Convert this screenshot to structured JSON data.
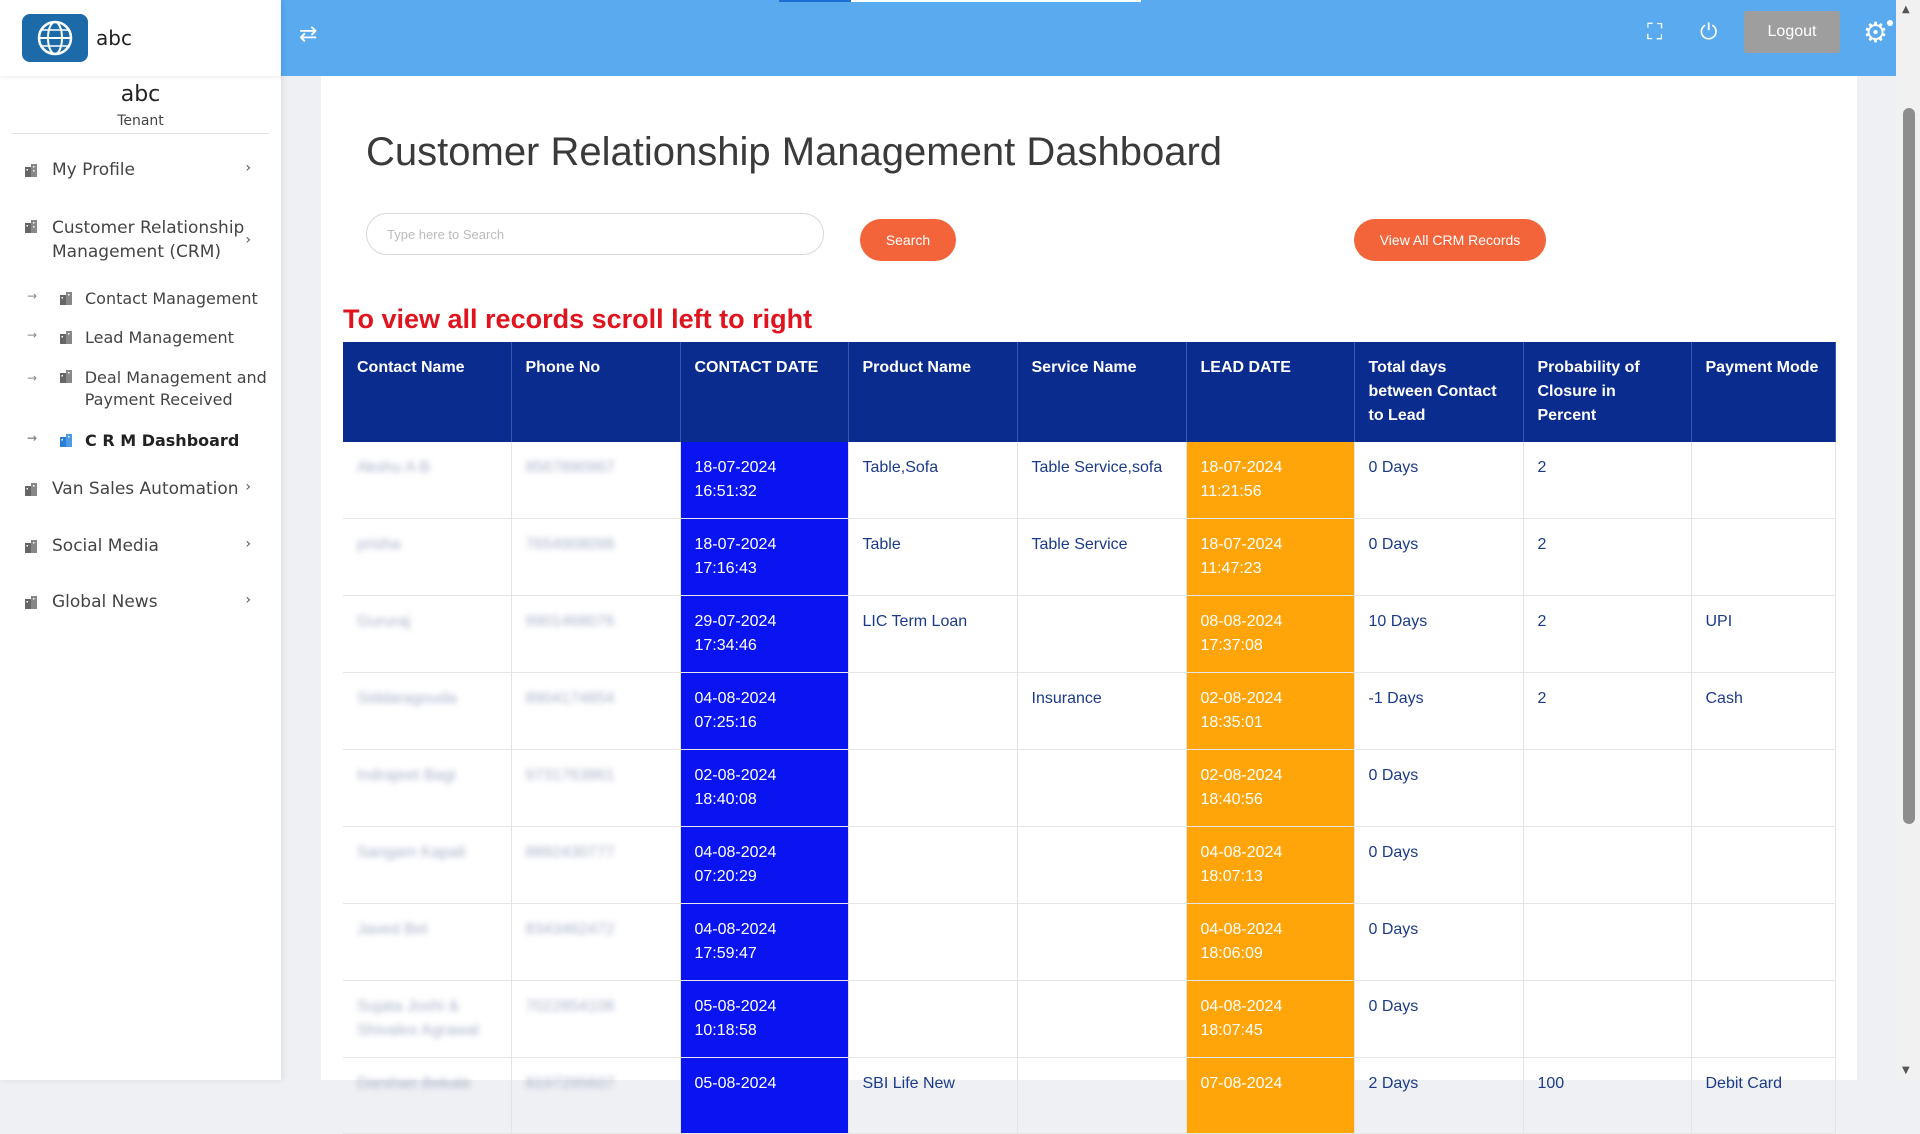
{
  "brand": {
    "name": "abc"
  },
  "user": {
    "name": "abc",
    "role": "Tenant"
  },
  "sidebar": {
    "items": [
      {
        "label": "My Profile"
      },
      {
        "label": "Customer Relationship Management (CRM)"
      },
      {
        "label": "Van Sales Automation"
      },
      {
        "label": "Social Media"
      },
      {
        "label": "Global News"
      }
    ],
    "sub_items": [
      {
        "label": "Contact Management"
      },
      {
        "label": "Lead Management"
      },
      {
        "label": "Deal Management and Payment Received"
      },
      {
        "label": "C R M Dashboard"
      }
    ]
  },
  "topbar": {
    "logout_label": "Logout"
  },
  "main": {
    "title": "Customer Relationship Management Dashboard",
    "search_placeholder": "Type here to Search",
    "search_button": "Search",
    "view_all_button": "View All CRM Records",
    "hint": "To view all records scroll left to right"
  },
  "table": {
    "headers": [
      "Contact Name",
      "Phone No",
      "CONTACT DATE",
      "Product Name",
      "Service Name",
      "LEAD DATE",
      "Total days between Contact to Lead",
      "Probability of Closure in Percent",
      "Payment Mode"
    ],
    "rows": [
      [
        "Akshu A B",
        "8567890967",
        "18-07-2024 16:51:32",
        "Table,Sofa",
        "Table Service,sofa",
        "18-07-2024 11:21:56",
        "0 Days",
        "2",
        ""
      ],
      [
        "prisha",
        "7654908098",
        "18-07-2024 17:16:43",
        "Table",
        "Table Service",
        "18-07-2024 11:47:23",
        "0 Days",
        "2",
        ""
      ],
      [
        "Gururaj",
        "9901468076",
        "29-07-2024 17:34:46",
        "LIC Term Loan",
        "",
        "08-08-2024 17:37:08",
        "10 Days",
        "2",
        "UPI"
      ],
      [
        "Siddaragouda",
        "8904174854",
        "04-08-2024 07:25:16",
        "",
        "Insurance",
        "02-08-2024 18:35:01",
        "-1 Days",
        "2",
        "Cash"
      ],
      [
        "Indrajeet Bagi",
        "9731763861",
        "02-08-2024 18:40:08",
        "",
        "",
        "02-08-2024 18:40:56",
        "0 Days",
        "",
        ""
      ],
      [
        "Sangam Kapali",
        "8892430777",
        "04-08-2024 07:20:29",
        "",
        "",
        "04-08-2024 18:07:13",
        "0 Days",
        "",
        ""
      ],
      [
        "Javed Bel",
        "8343462472",
        "04-08-2024 17:59:47",
        "",
        "",
        "04-08-2024 18:06:09",
        "0 Days",
        "",
        ""
      ],
      [
        "Sujata Joshi & Shivalex Agrawal",
        "7022854108",
        "05-08-2024 10:18:58",
        "",
        "",
        "04-08-2024 18:07:45",
        "0 Days",
        "",
        ""
      ],
      [
        "Darshan Bekale",
        "8197295607",
        "05-08-2024",
        "SBI Life New",
        "",
        "07-08-2024",
        "2 Days",
        "100",
        "Debit Card"
      ]
    ]
  },
  "colors": {
    "topbar": "#5aaaf0",
    "table_header": "#0b2c8f",
    "contact_date": "#0a14f0",
    "lead_date": "#ffa50a",
    "accent_button": "#f4643a",
    "hint_text": "#e0141e"
  }
}
